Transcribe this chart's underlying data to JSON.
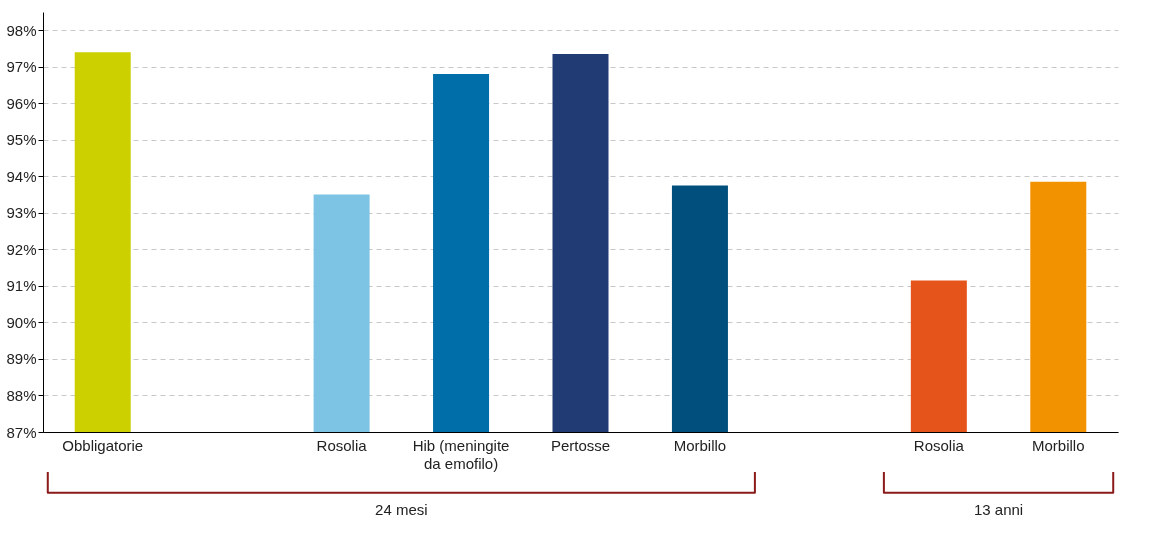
{
  "chart_data": {
    "type": "bar",
    "categories": [
      "Obbligatorie",
      null,
      "Rosolia",
      "Hib (meningite da emofilo)",
      "Pertosse",
      "Morbillo",
      null,
      "Rosolia",
      "Morbillo"
    ],
    "values": [
      97.4,
      null,
      93.5,
      96.8,
      97.35,
      93.75,
      null,
      91.15,
      93.85
    ],
    "colors": [
      "#cdd000",
      null,
      "#7dc4e4",
      "#006ea8",
      "#213b74",
      "#004f7c",
      null,
      "#e5541a",
      "#f39200"
    ],
    "ylim": [
      87,
      98.5
    ],
    "yticks": [
      {
        "value": 87,
        "label": "87%"
      },
      {
        "value": 88,
        "label": "88%"
      },
      {
        "value": 89,
        "label": "89%"
      },
      {
        "value": 90,
        "label": "90%"
      },
      {
        "value": 91,
        "label": "91%"
      },
      {
        "value": 92,
        "label": "92%"
      },
      {
        "value": 93,
        "label": "93%"
      },
      {
        "value": 94,
        "label": "94%"
      },
      {
        "value": 95,
        "label": "95%"
      },
      {
        "value": 96,
        "label": "96%"
      },
      {
        "value": 97,
        "label": "97%"
      },
      {
        "value": 98,
        "label": "98%"
      }
    ],
    "grid": "y",
    "annotations": [
      "24 mesi",
      "13 anni"
    ]
  }
}
